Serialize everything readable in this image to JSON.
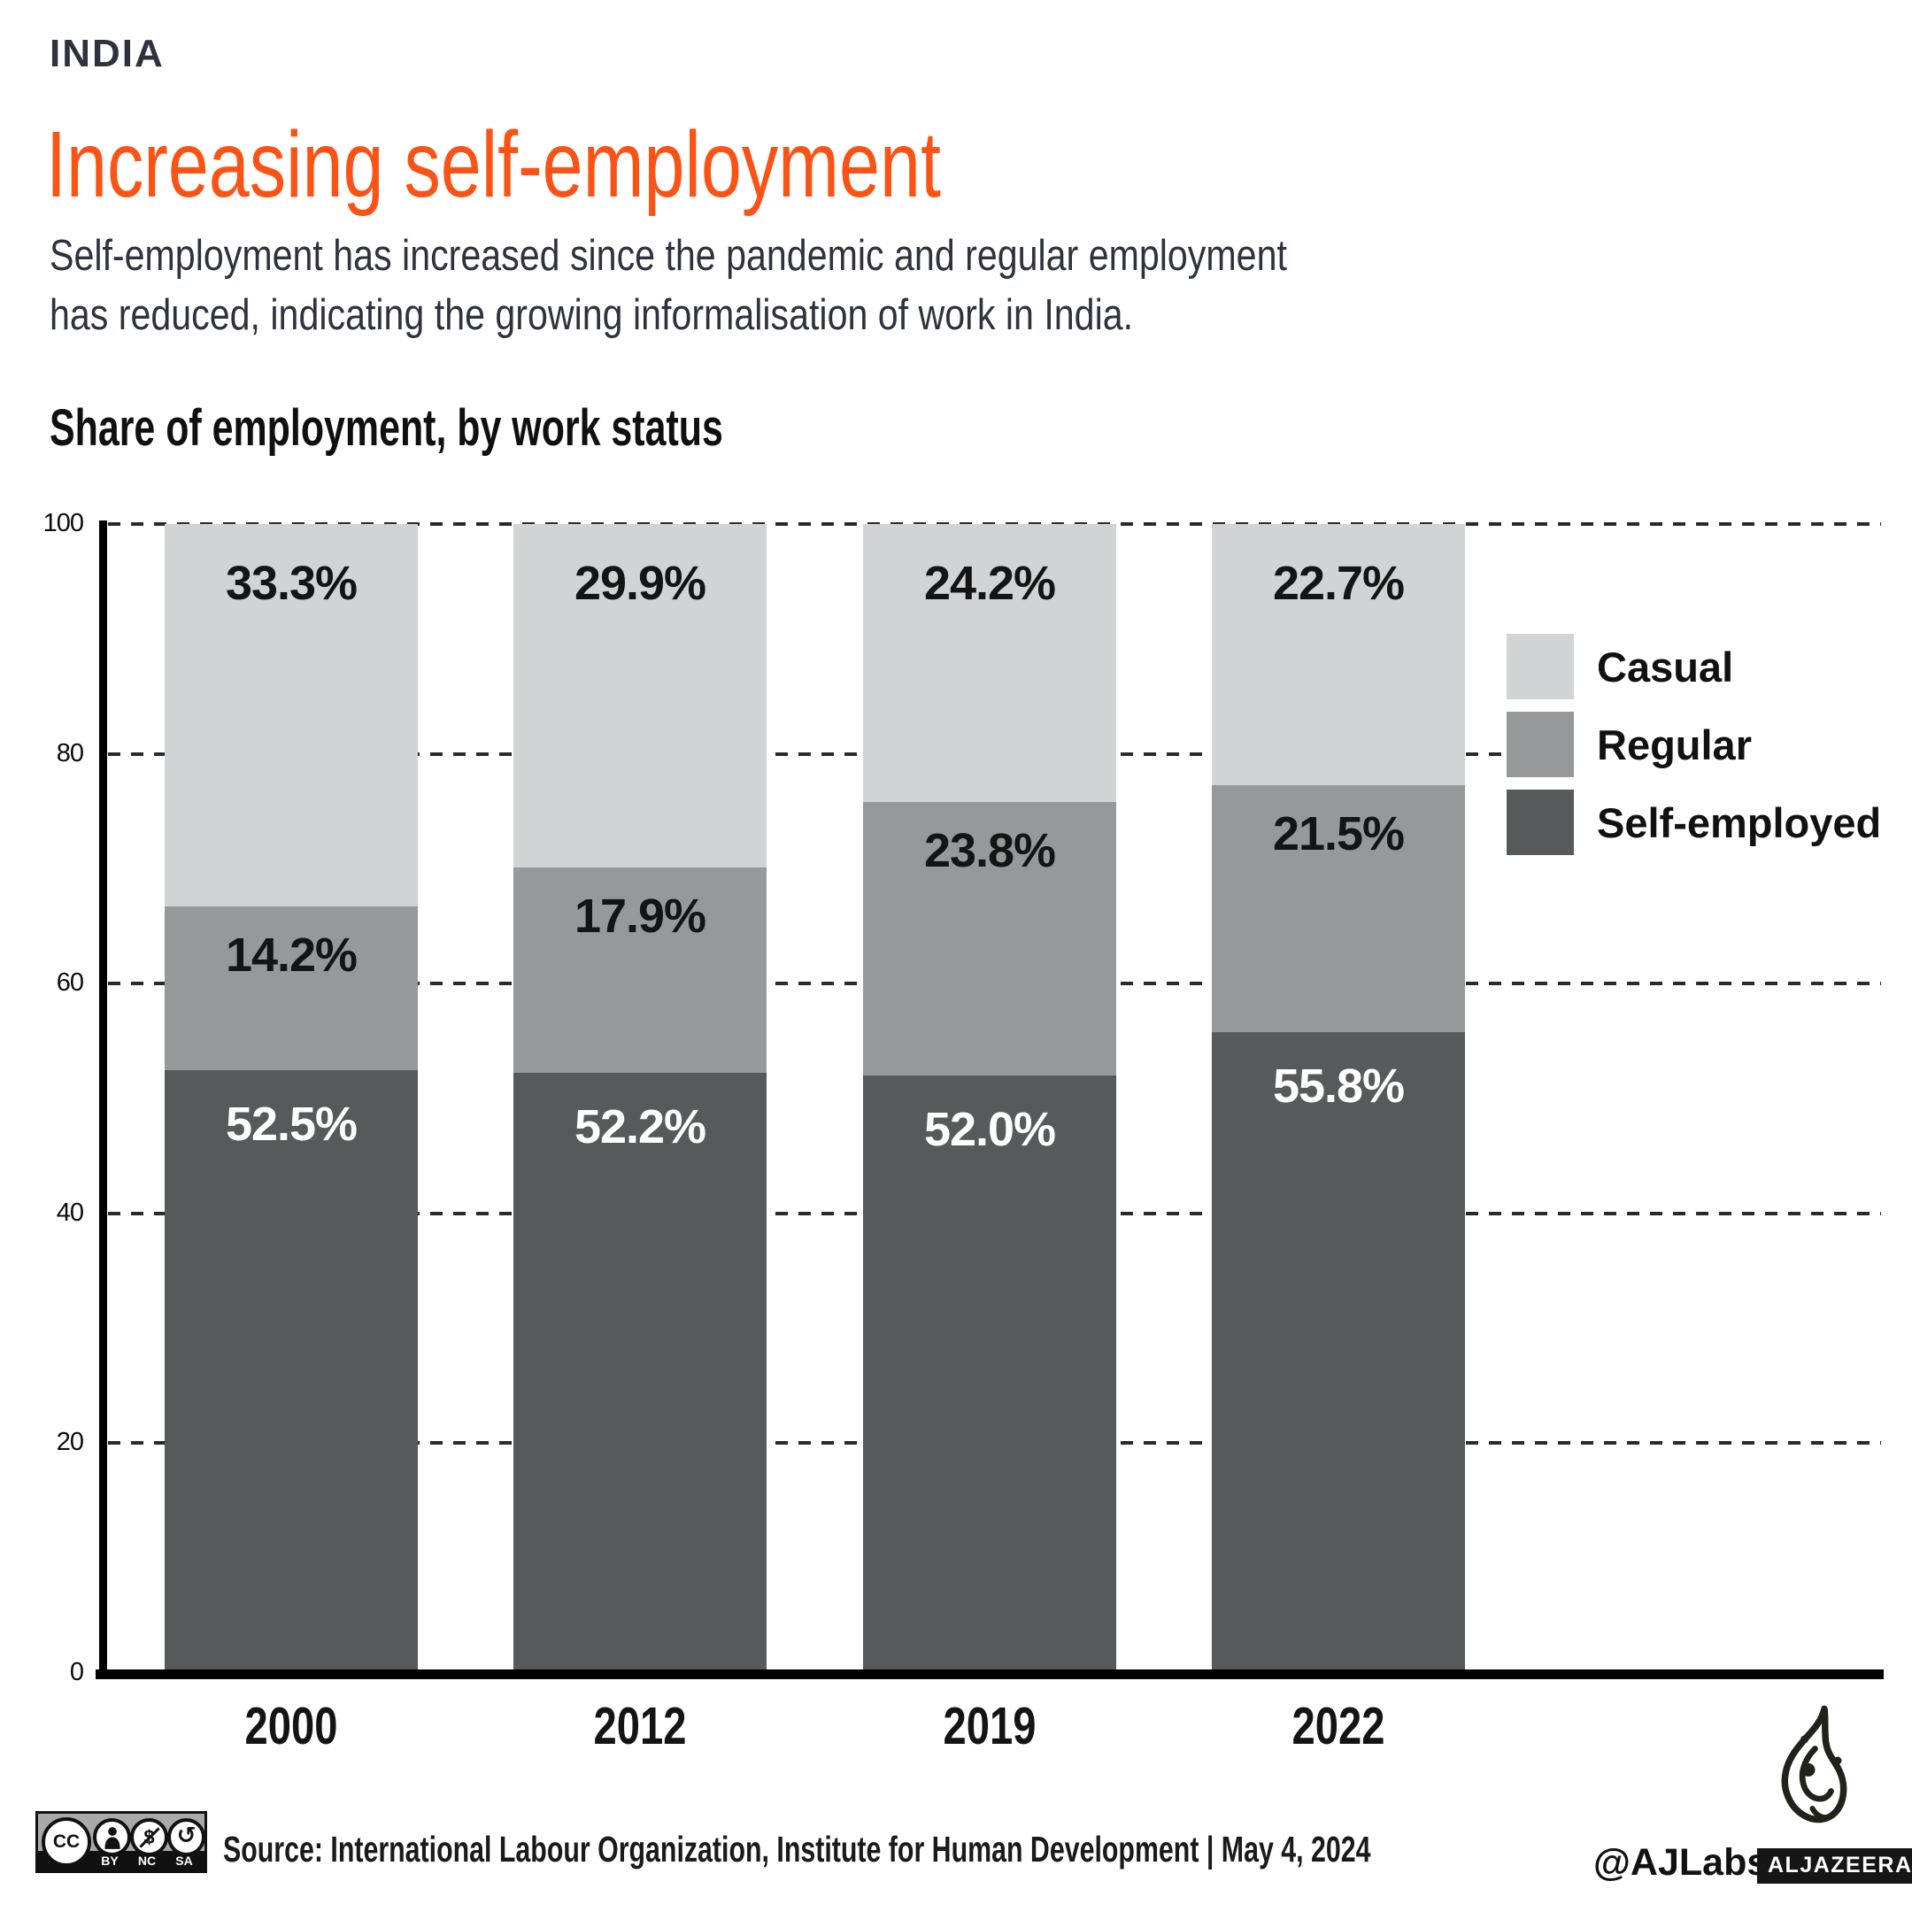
{
  "colors": {
    "accent": "#fb5315",
    "body_text": "#2d333e",
    "heading_text": "#101010",
    "casual": "#d2d3d4",
    "regular": "#97989a",
    "self_employed": "#58595b"
  },
  "header": {
    "kicker": "INDIA",
    "title": "Increasing self-employment",
    "subtitle_line1": "Self-employment has increased since the pandemic and regular employment",
    "subtitle_line2": "has reduced, indicating the growing informalisation of work in India."
  },
  "chart": {
    "title": "Share of employment, by work status"
  },
  "chart_data": {
    "type": "bar",
    "stacked": true,
    "title": "Share of employment, by work status",
    "categories": [
      "2000",
      "2012",
      "2019",
      "2022"
    ],
    "series": [
      {
        "name": "Self-employed",
        "color": "#58595b",
        "label_color": "#ffffff",
        "values": [
          52.5,
          52.2,
          52.0,
          55.8
        ],
        "labels": [
          "52.5%",
          "52.2%",
          "52.0%",
          "55.8%"
        ]
      },
      {
        "name": "Regular",
        "color": "#97989a",
        "label_color": "#141414",
        "values": [
          14.2,
          17.9,
          23.8,
          21.5
        ],
        "labels": [
          "14.2%",
          "17.9%",
          "23.8%",
          "21.5%"
        ]
      },
      {
        "name": "Casual",
        "color": "#d2d3d4",
        "label_color": "#141414",
        "values": [
          33.3,
          29.9,
          24.2,
          22.7
        ],
        "labels": [
          "33.3%",
          "29.9%",
          "24.2%",
          "22.7%"
        ]
      }
    ],
    "ylim": [
      0,
      100
    ],
    "yticks": [
      0,
      20,
      40,
      60,
      80,
      100
    ],
    "grid": "dashed-horizontal",
    "legend_position": "right",
    "legend_order": [
      "Casual",
      "Regular",
      "Self-employed"
    ]
  },
  "footer": {
    "license": {
      "cc": "CC",
      "terms": [
        "BY",
        "NC",
        "SA"
      ]
    },
    "source": "Source: International Labour Organization, Institute for Human Development | May 4, 2024",
    "credit": "@AJLabs",
    "brand": "ALJAZEERA"
  }
}
